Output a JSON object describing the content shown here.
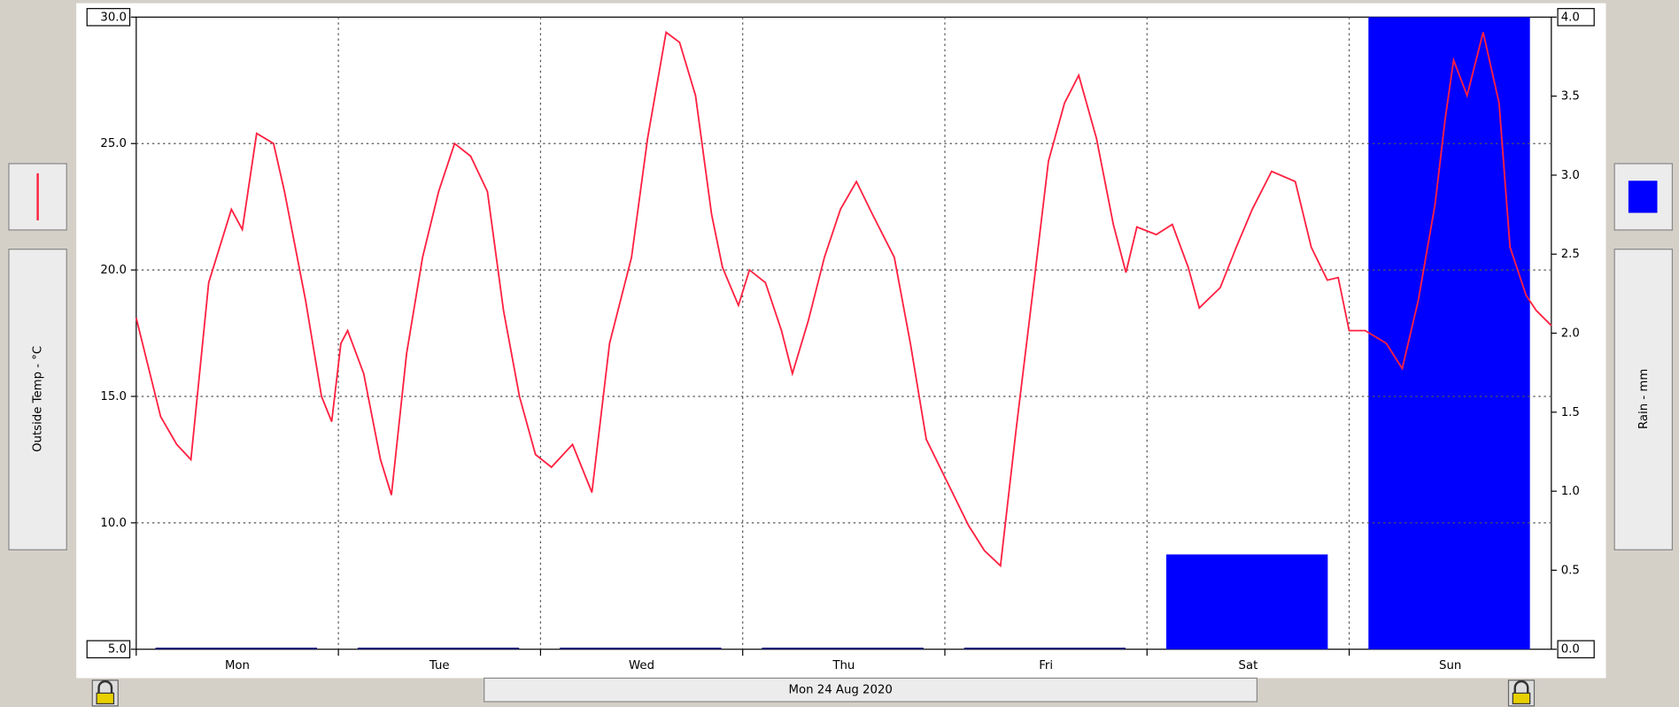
{
  "chart_data": {
    "type": "line",
    "date_label": "Mon 24 Aug 2020",
    "categories": [
      "Mon",
      "Tue",
      "Wed",
      "Thu",
      "Fri",
      "Sat",
      "Sun"
    ],
    "xlim": [
      0,
      168
    ],
    "ylim": [
      5,
      30
    ],
    "yticks": [
      {
        "value": 5,
        "label": "5.0"
      },
      {
        "value": 10,
        "label": "10.0"
      },
      {
        "value": 15,
        "label": "15.0"
      },
      {
        "value": 20,
        "label": "20.0"
      },
      {
        "value": 25,
        "label": "25.0"
      },
      {
        "value": 30,
        "label": "30.0"
      }
    ],
    "y2lim": [
      0,
      4
    ],
    "y2ticks": [
      {
        "value": 0,
        "label": "0.0"
      },
      {
        "value": 0.5,
        "label": "0.5"
      },
      {
        "value": 1,
        "label": "1.0"
      },
      {
        "value": 1.5,
        "label": "1.5"
      },
      {
        "value": 2,
        "label": "2.0"
      },
      {
        "value": 2.5,
        "label": "2.5"
      },
      {
        "value": 3,
        "label": "3.0"
      },
      {
        "value": 3.5,
        "label": "3.5"
      },
      {
        "value": 4,
        "label": "4.0"
      }
    ],
    "grid": true,
    "series": [
      {
        "name": "Outside Temp - °C",
        "color": "#ff2040",
        "x": [
          0,
          2.9,
          4.8,
          6.5,
          8.6,
          11.3,
          12.6,
          14.3,
          16.3,
          17.6,
          20.1,
          22,
          23.2,
          24.3,
          25.1,
          27,
          29,
          30.3,
          32.1,
          34,
          35.9,
          37.8,
          39.7,
          41.7,
          43.6,
          45.5,
          47.4,
          49.3,
          51.8,
          54.1,
          56.2,
          58.8,
          60.7,
          62.9,
          64.5,
          66.4,
          68.3,
          69.6,
          71.5,
          72.8,
          74.7,
          76.6,
          77.9,
          79.8,
          81.7,
          83.6,
          85.5,
          87.4,
          90,
          91.9,
          93.8,
          96.3,
          98.8,
          100.7,
          102.6,
          104.5,
          106.5,
          108.3,
          110.2,
          111.9,
          114,
          116,
          117.5,
          118.8,
          121.1,
          123,
          124.9,
          126.2,
          128.7,
          130.6,
          132.5,
          134.8,
          137.6,
          139.5,
          141.4,
          142.7,
          144,
          145.9,
          148.4,
          150.3,
          152.2,
          154.2,
          155.4,
          156.4,
          158,
          159.9,
          161.8,
          163.1,
          165,
          166.2,
          168
        ],
        "values": [
          18.1,
          14.2,
          13.1,
          12.5,
          19.5,
          22.4,
          21.6,
          25.4,
          25.0,
          23.1,
          18.8,
          15.0,
          14.0,
          17.1,
          17.6,
          15.9,
          12.5,
          11.1,
          16.7,
          20.5,
          23.1,
          25.0,
          24.5,
          23.1,
          18.4,
          15.0,
          12.7,
          12.2,
          13.1,
          11.2,
          17.1,
          20.5,
          25.2,
          29.4,
          29.0,
          26.9,
          22.2,
          20.1,
          18.6,
          20.0,
          19.5,
          17.6,
          15.9,
          18.0,
          20.5,
          22.4,
          23.5,
          22.2,
          20.5,
          17.1,
          13.3,
          11.6,
          9.9,
          8.9,
          8.3,
          13.8,
          19.3,
          24.3,
          26.6,
          27.7,
          25.2,
          21.8,
          19.9,
          21.7,
          21.4,
          21.8,
          20.1,
          18.5,
          19.3,
          20.9,
          22.4,
          23.9,
          23.5,
          20.9,
          19.6,
          19.7,
          17.6,
          17.6,
          17.1,
          16.1,
          18.8,
          22.6,
          26.0,
          28.3,
          26.9,
          29.4,
          26.6,
          20.9,
          19.0,
          18.4,
          17.8
        ]
      },
      {
        "name": "Rain - mm",
        "color": "#0000ff",
        "axis": "y2",
        "values": [
          0,
          0,
          0,
          0,
          0,
          0.6,
          4.0
        ]
      }
    ]
  }
}
